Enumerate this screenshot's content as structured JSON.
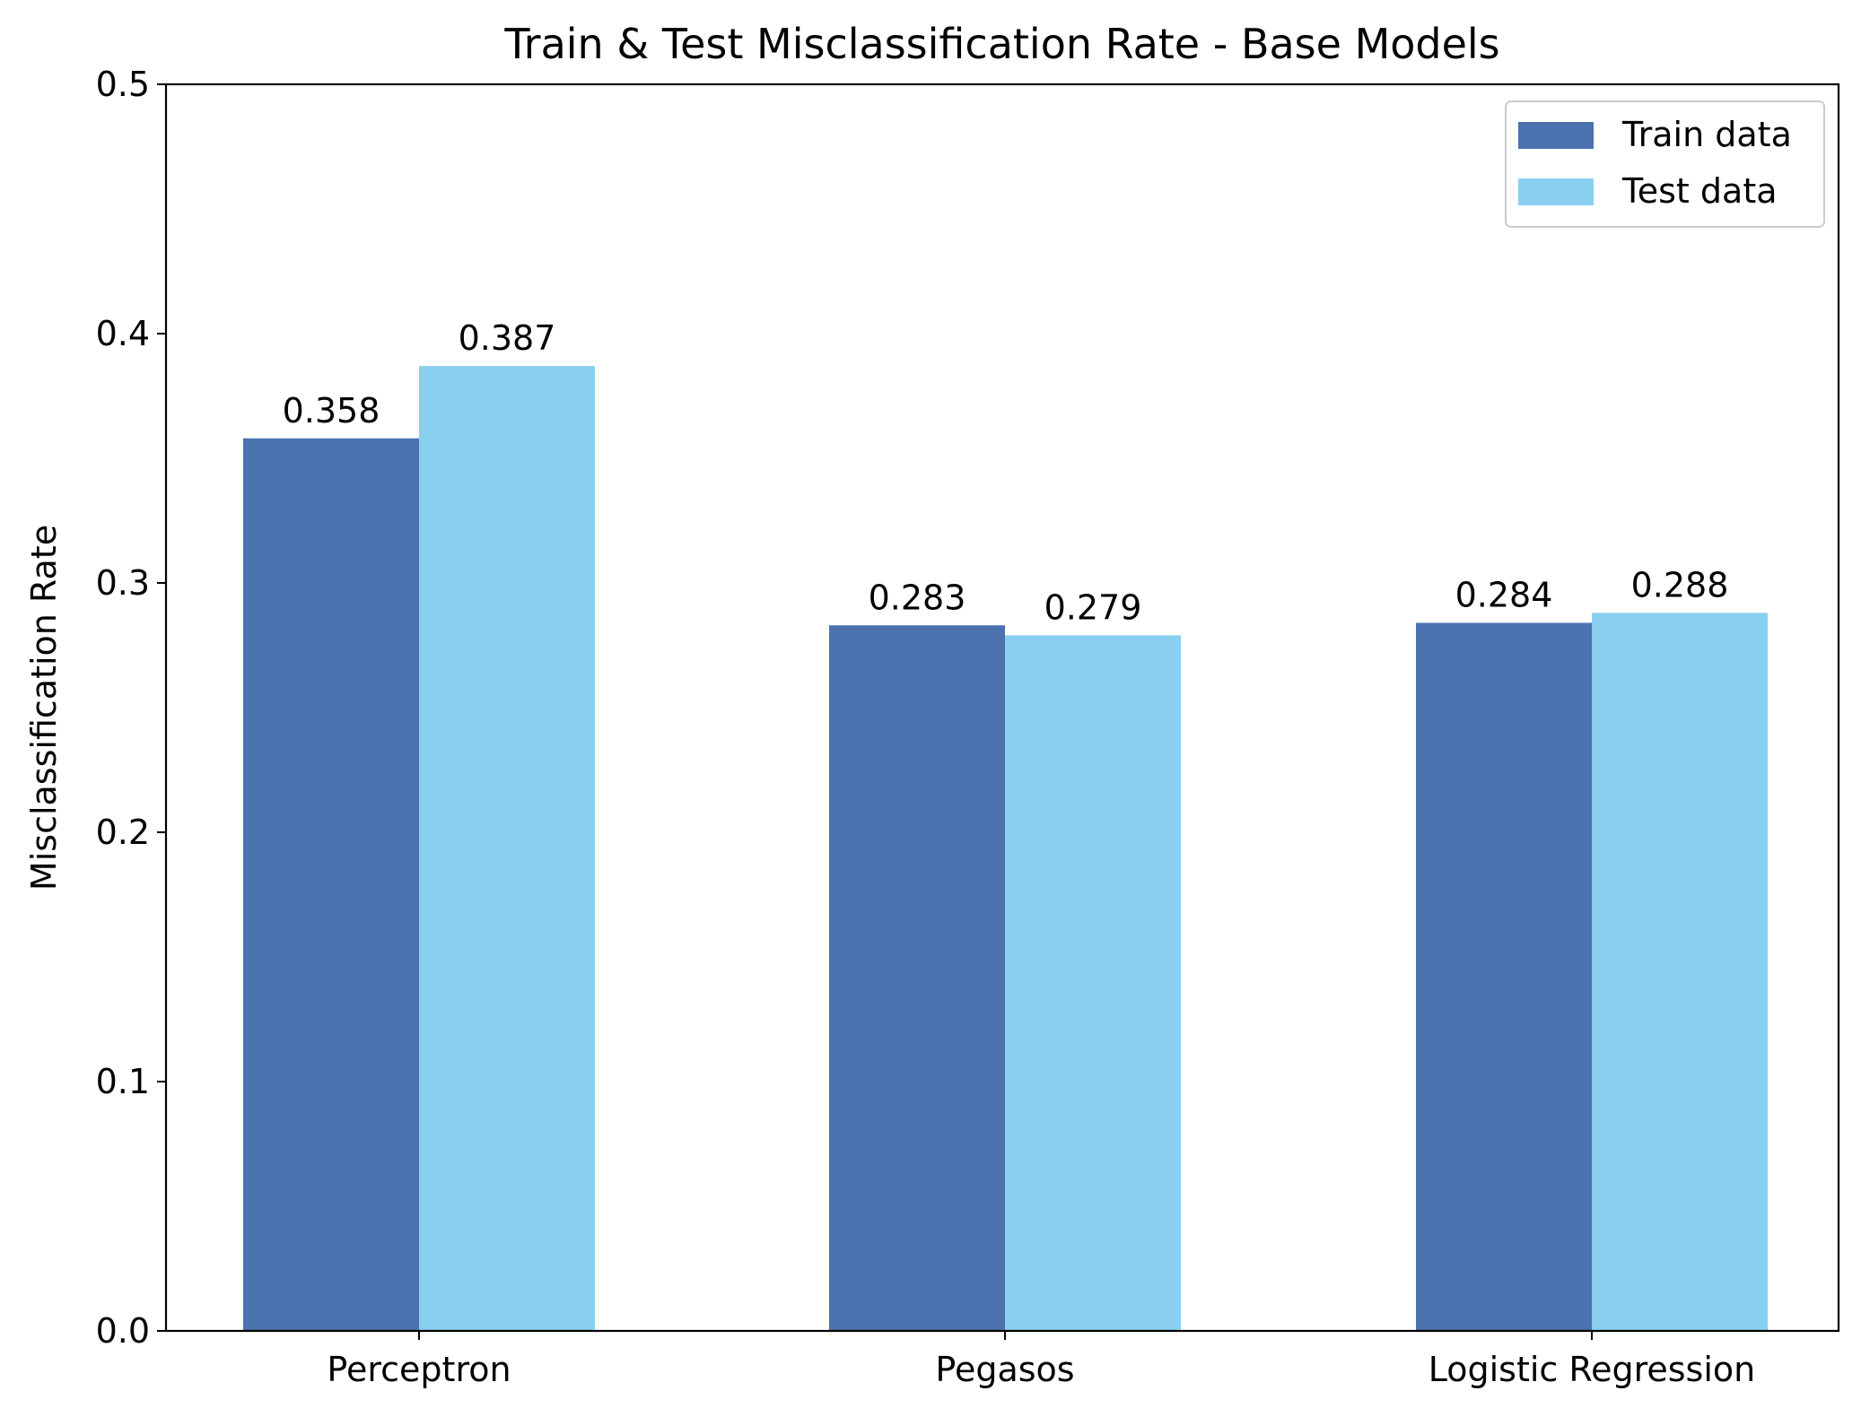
{
  "chart_data": {
    "type": "bar",
    "title": "Train & Test Misclassification Rate - Base Models",
    "xlabel": "",
    "ylabel": "Misclassification Rate",
    "categories": [
      "Perceptron",
      "Pegasos",
      "Logistic Regression"
    ],
    "series": [
      {
        "name": "Train data",
        "color": "#4c72b0",
        "values": [
          0.358,
          0.283,
          0.284
        ],
        "labels": [
          "0.358",
          "0.283",
          "0.284"
        ]
      },
      {
        "name": "Test data",
        "color": "#89cfef",
        "values": [
          0.387,
          0.279,
          0.288
        ],
        "labels": [
          "0.387",
          "0.279",
          "0.288"
        ]
      }
    ],
    "ylim": [
      0,
      0.5
    ],
    "yticks": [
      0.0,
      0.1,
      0.2,
      0.3,
      0.4,
      0.5
    ],
    "ytick_labels": [
      "0.0",
      "0.1",
      "0.2",
      "0.3",
      "0.4",
      "0.5"
    ],
    "grid": false,
    "legend_position": "top-right"
  }
}
